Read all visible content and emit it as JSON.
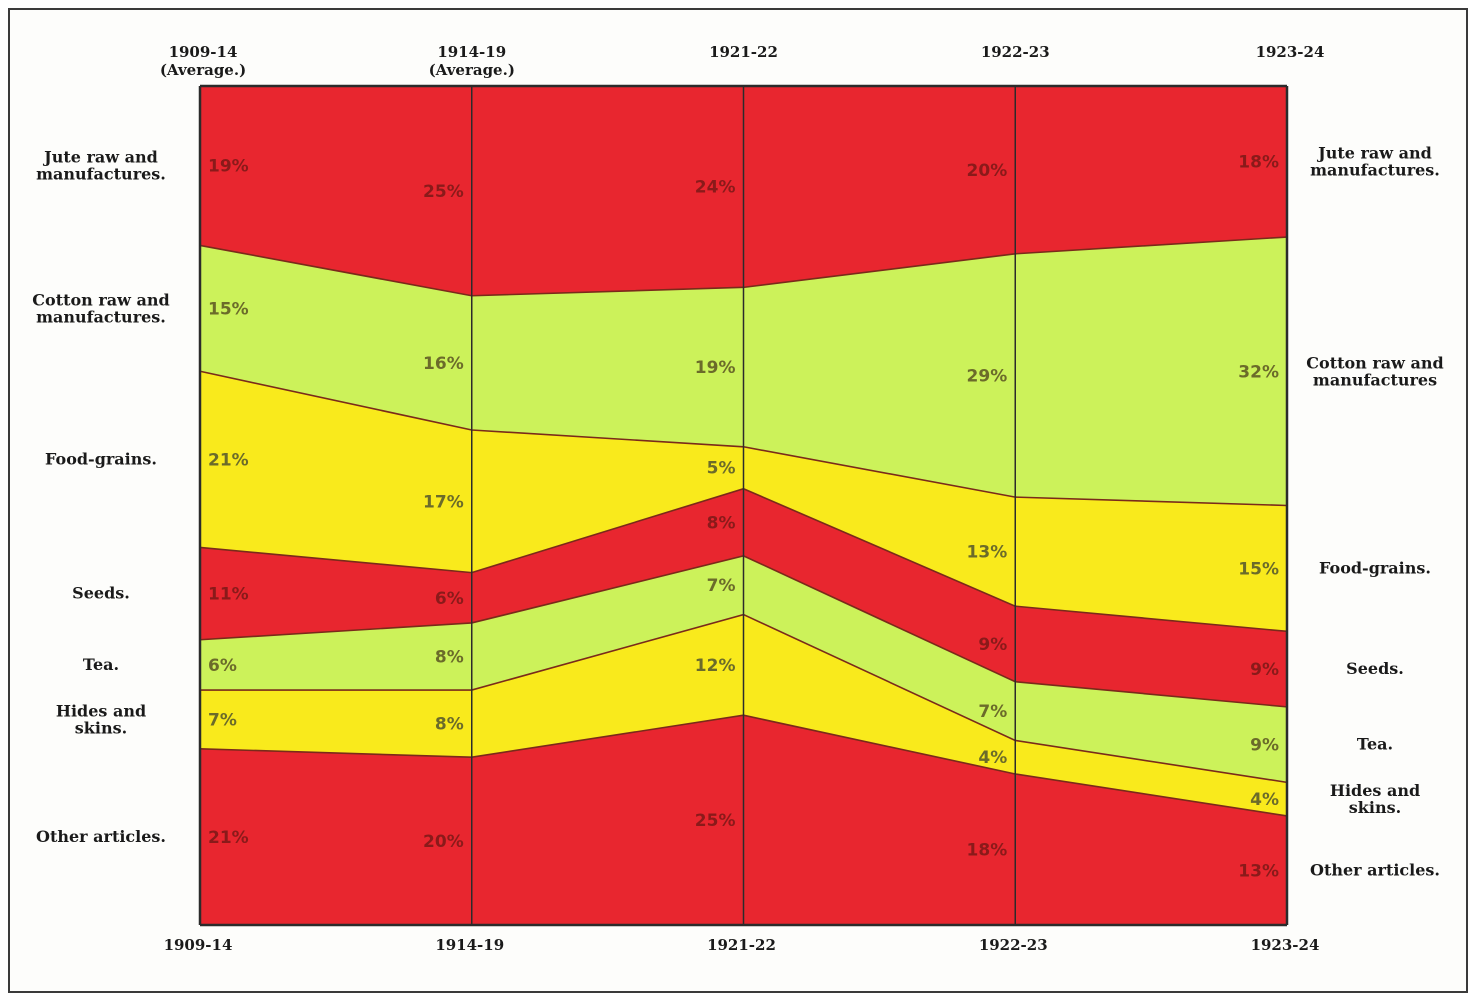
{
  "chart_data": {
    "type": "area",
    "stacking": "percent",
    "x": [
      "1909-14",
      "1914-19",
      "1921-22",
      "1922-23",
      "1923-24"
    ],
    "top_labels": [
      [
        "1909-14",
        "(Average.)"
      ],
      [
        "1914-19",
        "(Average.)"
      ],
      [
        "1921-22"
      ],
      [
        "1922-23"
      ],
      [
        "1923-24"
      ]
    ],
    "bottom_labels": [
      "1909-14",
      "1914-19",
      "1921-22",
      "1922-23",
      "1923-24"
    ],
    "ylim": [
      0,
      100
    ],
    "series": [
      {
        "name": "Jute raw and manufactures.",
        "left_label": [
          "Jute raw and",
          "manufactures."
        ],
        "right_label": [
          "Jute raw and",
          "manufactures."
        ],
        "color": "#e8262f",
        "values": [
          19,
          25,
          24,
          20,
          18
        ],
        "value_labels": [
          "19%",
          "25%",
          "24%",
          "20%",
          "18%"
        ]
      },
      {
        "name": "Cotton raw and manufactures.",
        "left_label": [
          "Cotton raw and",
          "manufactures."
        ],
        "right_label": [
          "Cotton raw and",
          "manufactures"
        ],
        "color": "#ccf25a",
        "values": [
          15,
          16,
          19,
          29,
          32
        ],
        "value_labels": [
          "15%",
          "16%",
          "19%",
          "29%",
          "32%"
        ]
      },
      {
        "name": "Food-grains.",
        "left_label": [
          "Food-grains."
        ],
        "right_label": [
          "Food-grains."
        ],
        "color": "#f9ea1c",
        "values": [
          21,
          17,
          5,
          13,
          15
        ],
        "value_labels": [
          "21%",
          "17%",
          "5%",
          "13%",
          "15%"
        ]
      },
      {
        "name": "Seeds.",
        "left_label": [
          "Seeds."
        ],
        "right_label": [
          "Seeds."
        ],
        "color": "#e8262f",
        "values": [
          11,
          6,
          8,
          9,
          9
        ],
        "value_labels": [
          "11%",
          "6%",
          "8%",
          "9%",
          "9%"
        ]
      },
      {
        "name": "Tea.",
        "left_label": [
          "Tea."
        ],
        "right_label": [
          "Tea."
        ],
        "color": "#ccf25a",
        "values": [
          6,
          8,
          7,
          7,
          9
        ],
        "value_labels": [
          "6%",
          "8%",
          "7%",
          "7%",
          "9%"
        ]
      },
      {
        "name": "Hides and skins.",
        "left_label": [
          "Hides and",
          "skins."
        ],
        "right_label": [
          "Hides and",
          "skins."
        ],
        "color": "#f9ea1c",
        "values": [
          7,
          8,
          12,
          4,
          4
        ],
        "value_labels": [
          "7%",
          "8%",
          "12%",
          "4%",
          "4%"
        ]
      },
      {
        "name": "Other articles.",
        "left_label": [
          "Other articles."
        ],
        "right_label": [
          "Other articles."
        ],
        "color": "#e8262f",
        "values": [
          21,
          20,
          25,
          18,
          13
        ],
        "value_labels": [
          "21%",
          "20%",
          "25%",
          "18%",
          "13%"
        ]
      }
    ]
  }
}
